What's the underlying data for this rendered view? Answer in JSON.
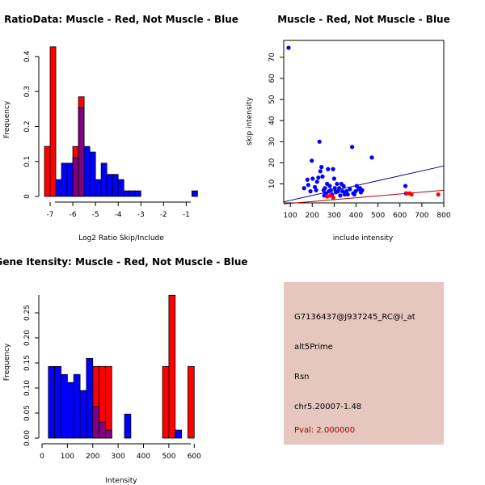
{
  "chart_data": [
    {
      "type": "bar",
      "title": "RatioData: Muscle - Red, Not Muscle - Blue",
      "xlabel": "Log2 Ratio Skip/Include",
      "ylabel": "Frequency",
      "xlim": [
        -7.5,
        -0.3
      ],
      "ylim": [
        0,
        0.43
      ],
      "xticks": [
        -7,
        -6,
        -5,
        -4,
        -3,
        -2,
        -1
      ],
      "xtick_labels": [
        "-7",
        "-6",
        "-5",
        "-4",
        "-3",
        "-2",
        "-1"
      ],
      "yticks": [
        0,
        0.1,
        0.2,
        0.3,
        0.4
      ],
      "ytick_labels": [
        "0",
        "0.1",
        "0.2",
        "0.3",
        "0.4"
      ],
      "series": [
        {
          "name": "Muscle",
          "color": "#ff0000",
          "bins": [
            {
              "x0": -7.25,
              "x1": -7.0,
              "y": 0.143
            },
            {
              "x0": -7.0,
              "x1": -6.75,
              "y": 0.428
            },
            {
              "x0": -6.0,
              "x1": -5.75,
              "y": 0.143
            },
            {
              "x0": -5.75,
              "x1": -5.5,
              "y": 0.285
            }
          ]
        },
        {
          "name": "Not Muscle",
          "color": "#0000ff",
          "bins": [
            {
              "x0": -6.75,
              "x1": -6.5,
              "y": 0.048
            },
            {
              "x0": -6.5,
              "x1": -6.25,
              "y": 0.095
            },
            {
              "x0": -6.25,
              "x1": -6.0,
              "y": 0.095
            },
            {
              "x0": -6.0,
              "x1": -5.75,
              "y": 0.111
            },
            {
              "x0": -5.75,
              "x1": -5.5,
              "y": 0.254
            },
            {
              "x0": -5.5,
              "x1": -5.25,
              "y": 0.143
            },
            {
              "x0": -5.25,
              "x1": -5.0,
              "y": 0.127
            },
            {
              "x0": -5.0,
              "x1": -4.75,
              "y": 0.048
            },
            {
              "x0": -4.75,
              "x1": -4.5,
              "y": 0.095
            },
            {
              "x0": -4.5,
              "x1": -4.25,
              "y": 0.063
            },
            {
              "x0": -4.25,
              "x1": -4.0,
              "y": 0.063
            },
            {
              "x0": -4.0,
              "x1": -3.75,
              "y": 0.048
            },
            {
              "x0": -3.75,
              "x1": -3.5,
              "y": 0.016
            },
            {
              "x0": -3.5,
              "x1": -3.25,
              "y": 0.016
            },
            {
              "x0": -3.25,
              "x1": -3.0,
              "y": 0.016
            },
            {
              "x0": -0.75,
              "x1": -0.5,
              "y": 0.016
            }
          ]
        }
      ]
    },
    {
      "type": "scatter",
      "title": "Muscle - Red, Not Muscle - Blue",
      "xlabel": "include intensity",
      "ylabel": "skip intensity",
      "xlim": [
        70,
        800
      ],
      "ylim": [
        1,
        78
      ],
      "xticks": [
        100,
        200,
        300,
        400,
        500,
        600,
        700,
        800
      ],
      "xtick_labels": [
        "100",
        "200",
        "300",
        "400",
        "500",
        "600",
        "700",
        "800"
      ],
      "yticks": [
        10,
        20,
        30,
        40,
        50,
        60,
        70
      ],
      "ytick_labels": [
        "10",
        "20",
        "30",
        "40",
        "50",
        "60",
        "70"
      ],
      "lines": [
        {
          "name": "Not Muscle fit",
          "color": "#000080",
          "x": [
            70,
            800
          ],
          "y": [
            1.5,
            18.5
          ]
        },
        {
          "name": "Muscle fit",
          "color": "#b00000",
          "x": [
            70,
            800
          ],
          "y": [
            0.5,
            7
          ]
        }
      ],
      "series": [
        {
          "name": "Not Muscle",
          "color": "#0000ff",
          "points": [
            [
              92,
              74.5
            ],
            [
              163,
              8
            ],
            [
              178,
              12
            ],
            [
              182,
              9.5
            ],
            [
              192,
              6.5
            ],
            [
              198,
              21
            ],
            [
              202,
              12.5
            ],
            [
              212,
              8.5
            ],
            [
              218,
              7
            ],
            [
              222,
              11
            ],
            [
              228,
              13
            ],
            [
              233,
              30
            ],
            [
              237,
              16
            ],
            [
              242,
              18
            ],
            [
              247,
              13.5
            ],
            [
              252,
              7
            ],
            [
              255,
              4.5
            ],
            [
              258,
              8
            ],
            [
              263,
              5.5
            ],
            [
              268,
              10
            ],
            [
              272,
              17
            ],
            [
              276,
              6.5
            ],
            [
              280,
              9
            ],
            [
              285,
              7
            ],
            [
              290,
              5
            ],
            [
              295,
              17
            ],
            [
              300,
              12.5
            ],
            [
              303,
              8
            ],
            [
              308,
              6
            ],
            [
              313,
              10
            ],
            [
              318,
              6.5
            ],
            [
              323,
              8
            ],
            [
              328,
              4.5
            ],
            [
              333,
              10
            ],
            [
              338,
              6.5
            ],
            [
              343,
              9
            ],
            [
              348,
              5
            ],
            [
              356,
              6.5
            ],
            [
              362,
              5
            ],
            [
              372,
              7.5
            ],
            [
              382,
              27.5
            ],
            [
              387,
              5.5
            ],
            [
              392,
              5
            ],
            [
              398,
              6.5
            ],
            [
              403,
              9
            ],
            [
              412,
              7.5
            ],
            [
              418,
              8
            ],
            [
              422,
              6
            ],
            [
              428,
              7
            ],
            [
              472,
              22.5
            ],
            [
              625,
              9
            ],
            [
              628,
              5.5
            ]
          ]
        },
        {
          "name": "Muscle",
          "color": "#ff0000",
          "points": [
            [
              268,
              4
            ],
            [
              282,
              4.5
            ],
            [
              296,
              3.5
            ],
            [
              630,
              5.5
            ],
            [
              645,
              5.5
            ],
            [
              653,
              5
            ],
            [
              775,
              5
            ]
          ]
        }
      ]
    },
    {
      "type": "bar",
      "title": "Gene Itensity: Muscle - Red, Not Muscle - Blue",
      "xlabel": "Intensity",
      "ylabel": "Frequency",
      "xlim": [
        0,
        615
      ],
      "ylim": [
        0,
        0.3
      ],
      "xticks": [
        0,
        100,
        200,
        300,
        400,
        500,
        600
      ],
      "xtick_labels": [
        "0",
        "100",
        "200",
        "300",
        "400",
        "500",
        "600"
      ],
      "yticks": [
        0,
        0.05,
        0.1,
        0.15,
        0.2,
        0.25
      ],
      "ytick_labels": [
        "0.00",
        "0.05",
        "0.10",
        "0.15",
        "0.20",
        "0.25"
      ],
      "series": [
        {
          "name": "Muscle",
          "color": "#ff0000",
          "bins": [
            {
              "x0": 200,
              "x1": 225,
              "y": 0.143
            },
            {
              "x0": 225,
              "x1": 250,
              "y": 0.143
            },
            {
              "x0": 250,
              "x1": 275,
              "y": 0.143
            },
            {
              "x0": 475,
              "x1": 500,
              "y": 0.143
            },
            {
              "x0": 500,
              "x1": 525,
              "y": 0.285
            },
            {
              "x0": 575,
              "x1": 600,
              "y": 0.143
            }
          ]
        },
        {
          "name": "Not Muscle",
          "color": "#0000ff",
          "bins": [
            {
              "x0": 25,
              "x1": 50,
              "y": 0.143
            },
            {
              "x0": 50,
              "x1": 75,
              "y": 0.143
            },
            {
              "x0": 75,
              "x1": 100,
              "y": 0.127
            },
            {
              "x0": 100,
              "x1": 125,
              "y": 0.111
            },
            {
              "x0": 125,
              "x1": 150,
              "y": 0.127
            },
            {
              "x0": 150,
              "x1": 175,
              "y": 0.095
            },
            {
              "x0": 175,
              "x1": 200,
              "y": 0.159
            },
            {
              "x0": 200,
              "x1": 225,
              "y": 0.063
            },
            {
              "x0": 225,
              "x1": 250,
              "y": 0.032
            },
            {
              "x0": 250,
              "x1": 275,
              "y": 0.016
            },
            {
              "x0": 325,
              "x1": 350,
              "y": 0.048
            },
            {
              "x0": 525,
              "x1": 550,
              "y": 0.016
            }
          ]
        }
      ]
    }
  ],
  "info": {
    "probe_id": "G7136437@J937245_RC@i_at",
    "event_type": "alt5Prime",
    "gene": "Rsn",
    "location": "chr5.20007-1.48",
    "pval": "Pval: 2.000000"
  },
  "colors": {
    "muscle": "#ff0000",
    "not_muscle": "#0000ff",
    "overlap": "#800080",
    "panel_bg": "#e5c7c0",
    "pval_text": "#a00000"
  }
}
